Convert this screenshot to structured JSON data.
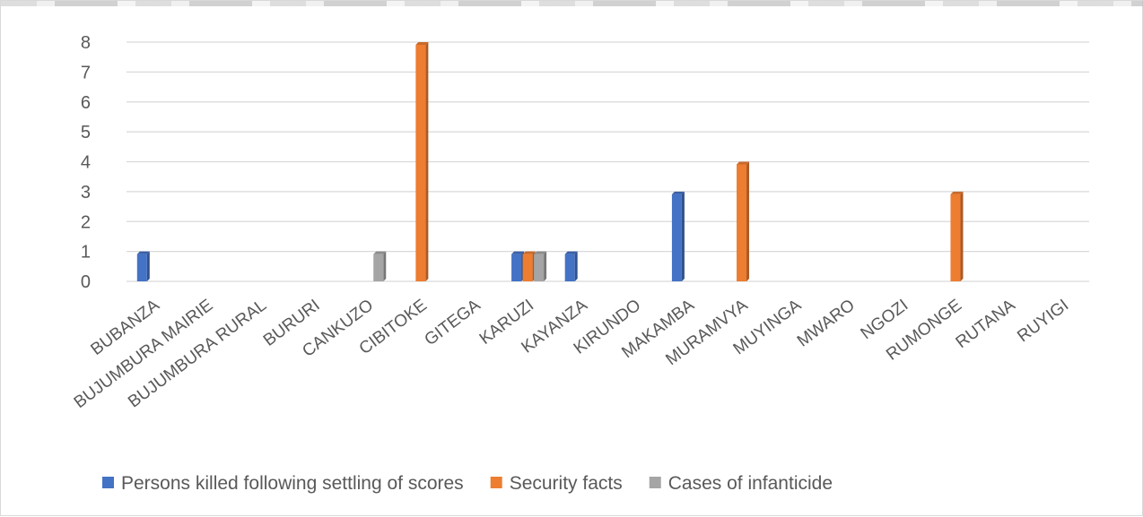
{
  "chart_data": {
    "type": "bar",
    "title": "",
    "xlabel": "",
    "ylabel": "",
    "ylim": [
      0,
      8
    ],
    "yticks": [
      0,
      1,
      2,
      3,
      4,
      5,
      6,
      7,
      8
    ],
    "grid": true,
    "legend_position": "bottom",
    "categories": [
      "BUBANZA",
      "BUJUMBURA MAIRIE",
      "BUJUMBURA RURAL",
      "BURURI",
      "CANKUZO",
      "CIBITOKE",
      "GITEGA",
      "KARUZI",
      "KAYANZA",
      "KIRUNDO",
      "MAKAMBA",
      "MURAMVYA",
      "MUYINGA",
      "MWARO",
      "NGOZI",
      "RUMONGE",
      "RUTANA",
      "RUYIGI"
    ],
    "series": [
      {
        "name": "Persons killed following settling of scores",
        "color": "#4472c4",
        "values": [
          1,
          null,
          null,
          null,
          null,
          null,
          null,
          1,
          1,
          null,
          3,
          null,
          null,
          null,
          null,
          null,
          null,
          null
        ]
      },
      {
        "name": "Security facts",
        "color": "#ed7d31",
        "values": [
          null,
          null,
          null,
          null,
          null,
          8,
          null,
          1,
          null,
          null,
          null,
          4,
          null,
          null,
          null,
          3,
          null,
          null
        ]
      },
      {
        "name": "Cases of infanticide",
        "color": "#a5a5a5",
        "values": [
          null,
          null,
          null,
          null,
          1,
          null,
          null,
          1,
          null,
          null,
          null,
          null,
          null,
          null,
          null,
          null,
          null,
          null
        ]
      }
    ]
  }
}
